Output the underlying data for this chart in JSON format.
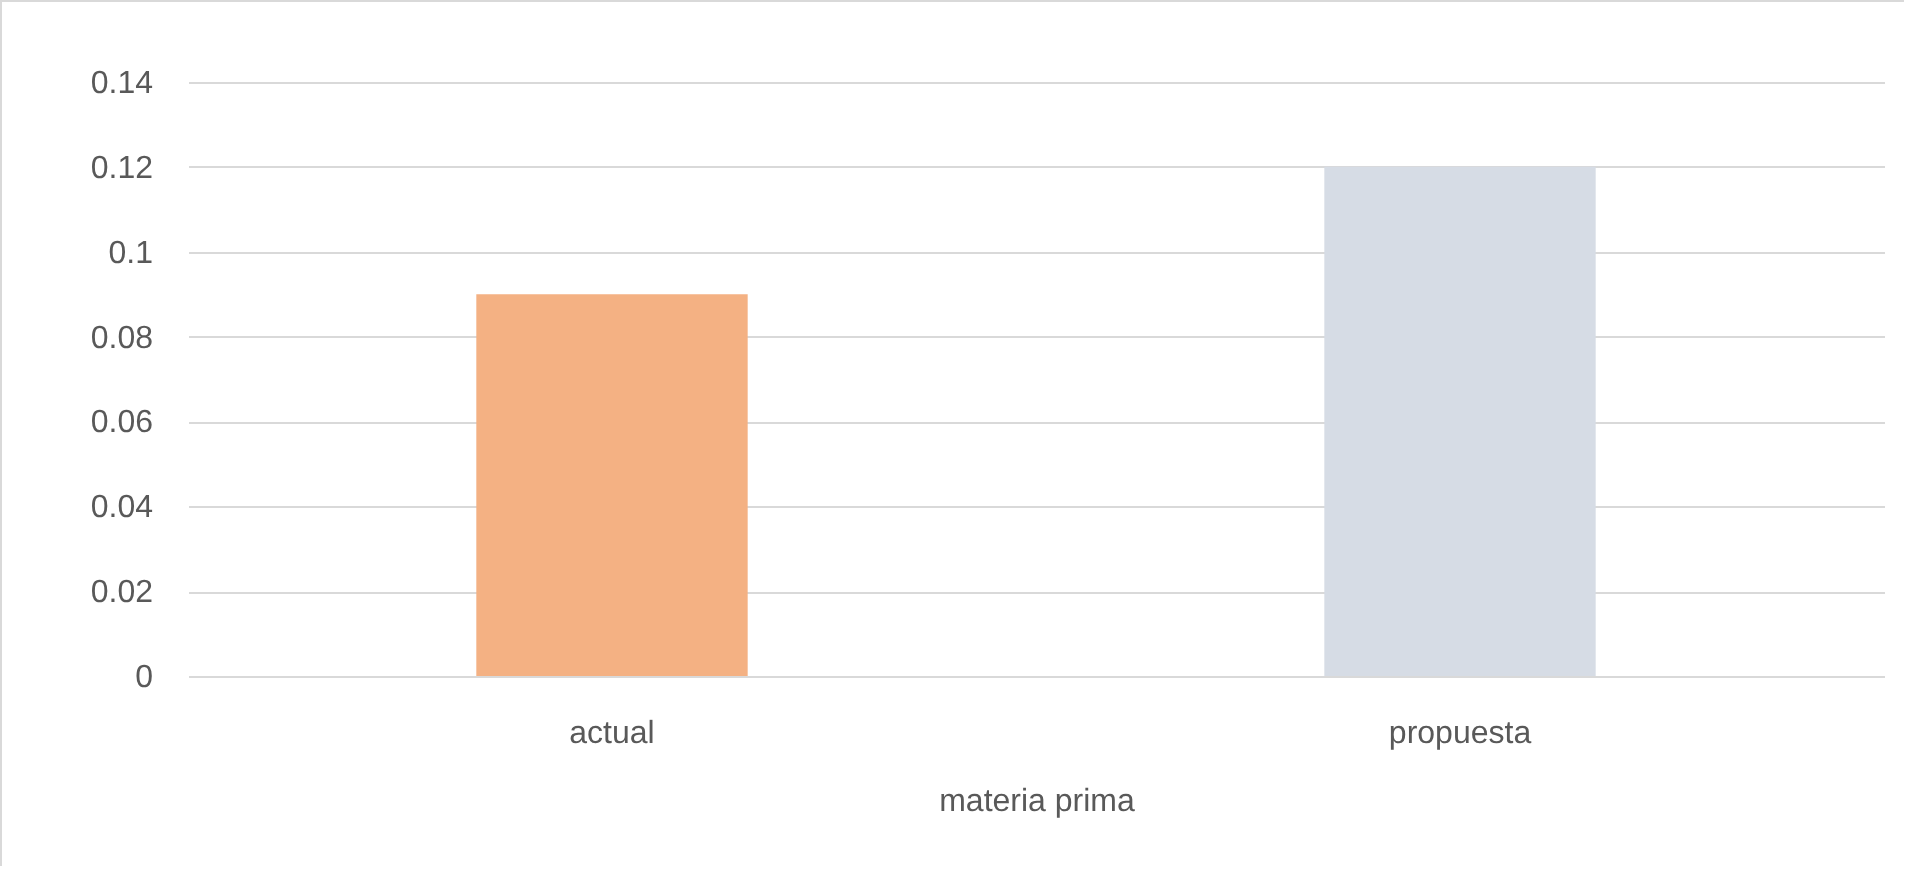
{
  "chart_data": {
    "type": "bar",
    "xlabel": "materia prima",
    "categories": [
      "actual",
      "propuesta"
    ],
    "values": [
      0.09,
      0.12
    ],
    "colors": [
      "#f4b183",
      "#d6dce5"
    ],
    "ylim": [
      0,
      0.14
    ],
    "yticks": [
      0,
      0.02,
      0.04,
      0.06,
      0.08,
      0.1,
      0.12,
      0.14
    ],
    "grid": "y"
  }
}
